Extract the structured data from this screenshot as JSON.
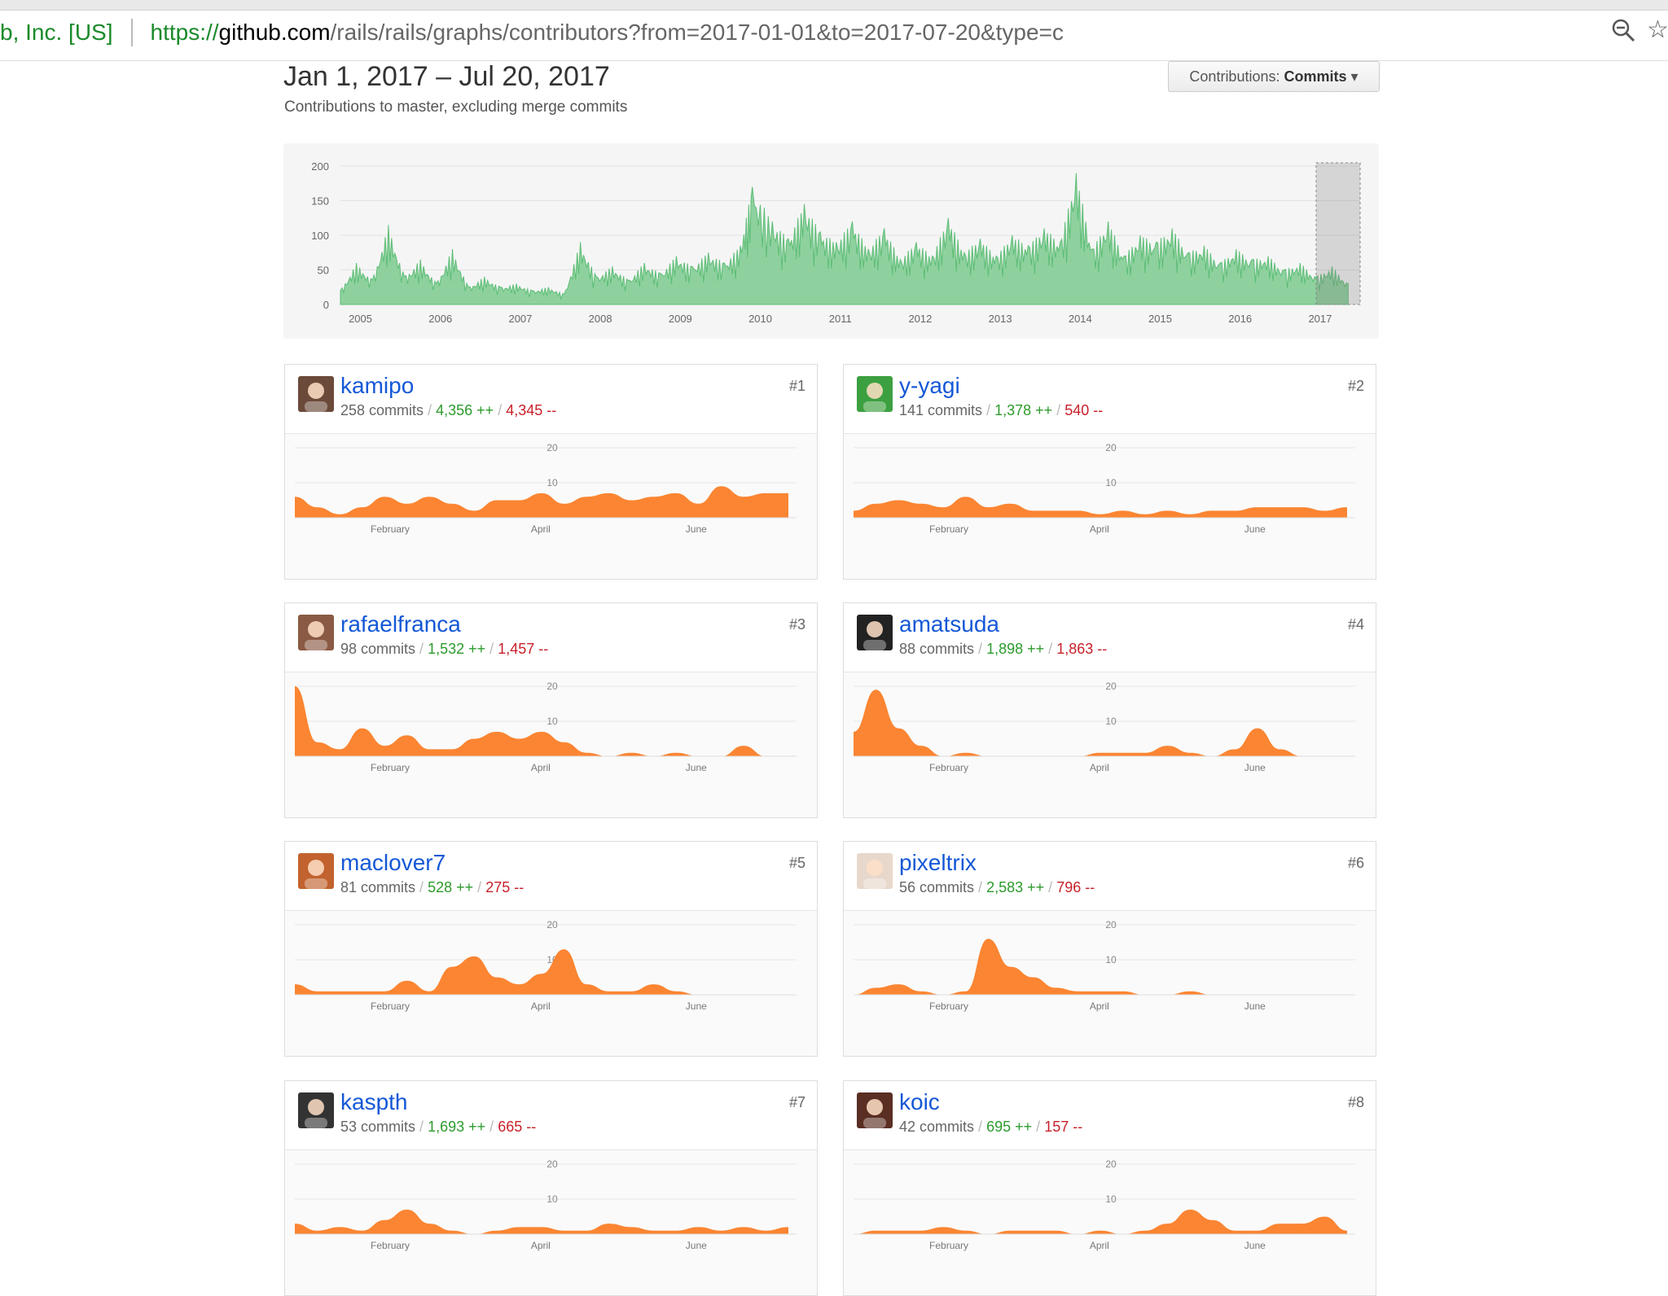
{
  "browser": {
    "cert_label": "b, Inc. [US]",
    "url_protocol": "https://",
    "url_domain": "github.com",
    "url_path": "/rails/rails/graphs/contributors?from=2017-01-01&to=2017-07-20&type=c"
  },
  "header": {
    "range_title": "Jan 1, 2017 – Jul 20, 2017",
    "subtitle": "Contributions to master, excluding merge commits",
    "contributions_label": "Contributions:",
    "contributions_value": "Commits"
  },
  "colors": {
    "overview_fill": "#8ed19e",
    "overview_stroke": "#5cbd75",
    "contributor_fill": "#fb8532",
    "link": "#1558d6",
    "additions": "#2c9b2c",
    "deletions": "#c8202a"
  },
  "chart_data": [
    {
      "type": "area",
      "ylim": [
        0,
        200
      ],
      "yticks": [
        "0",
        "50",
        "100",
        "150",
        "200"
      ],
      "xticks": [
        "2005",
        "2006",
        "2007",
        "2008",
        "2009",
        "2010",
        "2011",
        "2012",
        "2013",
        "2014",
        "2015",
        "2016",
        "2017"
      ],
      "x": [
        2004.8,
        2005.0,
        2005.2,
        2005.4,
        2005.6,
        2005.8,
        2006.0,
        2006.2,
        2006.4,
        2006.6,
        2006.8,
        2007.0,
        2007.2,
        2007.4,
        2007.6,
        2007.8,
        2008.0,
        2008.2,
        2008.4,
        2008.6,
        2008.8,
        2009.0,
        2009.2,
        2009.4,
        2009.6,
        2009.8,
        2009.95,
        2010.2,
        2010.4,
        2010.6,
        2010.8,
        2011.0,
        2011.2,
        2011.4,
        2011.6,
        2011.8,
        2012.0,
        2012.2,
        2012.4,
        2012.6,
        2012.8,
        2013.0,
        2013.2,
        2013.4,
        2013.6,
        2013.8,
        2014.0,
        2014.2,
        2014.4,
        2014.6,
        2014.8,
        2015.0,
        2015.2,
        2015.4,
        2015.6,
        2015.8,
        2016.0,
        2016.2,
        2016.4,
        2016.6,
        2016.8,
        2017.0,
        2017.2,
        2017.4
      ],
      "values": [
        20,
        60,
        35,
        115,
        40,
        65,
        30,
        80,
        25,
        40,
        25,
        30,
        20,
        25,
        15,
        90,
        40,
        55,
        35,
        60,
        45,
        70,
        55,
        75,
        60,
        85,
        170,
        120,
        95,
        145,
        105,
        90,
        120,
        80,
        110,
        65,
        90,
        70,
        125,
        75,
        95,
        70,
        100,
        85,
        110,
        90,
        190,
        80,
        120,
        70,
        100,
        90,
        110,
        75,
        85,
        60,
        80,
        65,
        70,
        50,
        60,
        40,
        55,
        30
      ],
      "selection": [
        "2017-01-01",
        "2017-07-20"
      ]
    },
    {
      "type": "area",
      "ylim": [
        0,
        20
      ],
      "yticks": [
        "10",
        "20"
      ],
      "xticks": [
        "February",
        "April",
        "June"
      ],
      "series": [
        {
          "name": "kamipo",
          "values": [
            6,
            3,
            1,
            3,
            6,
            4,
            6,
            4,
            2,
            5,
            5,
            7,
            4,
            6,
            7,
            5,
            6,
            7,
            4,
            9,
            6,
            7,
            7
          ]
        },
        {
          "name": "y-yagi",
          "values": [
            2,
            4,
            5,
            4,
            3,
            6,
            3,
            4,
            2,
            2,
            2,
            1,
            2,
            1,
            2,
            1,
            2,
            2,
            3,
            3,
            3,
            2,
            3
          ]
        },
        {
          "name": "rafaelfranca",
          "values": [
            20,
            4,
            2,
            8,
            3,
            6,
            2,
            2,
            5,
            7,
            5,
            7,
            4,
            1,
            0,
            1,
            0,
            1,
            0,
            0,
            3,
            0,
            0
          ]
        },
        {
          "name": "amatsuda",
          "values": [
            7,
            19,
            8,
            3,
            0,
            1,
            0,
            0,
            0,
            0,
            0,
            1,
            1,
            1,
            3,
            1,
            0,
            2,
            8,
            2,
            0,
            0,
            0
          ]
        },
        {
          "name": "maclover7",
          "values": [
            3,
            1,
            1,
            1,
            1,
            4,
            1,
            8,
            11,
            5,
            3,
            6,
            13,
            3,
            1,
            1,
            3,
            1,
            0,
            0,
            0,
            0,
            0
          ]
        },
        {
          "name": "pixeltrix",
          "values": [
            0,
            2,
            3,
            1,
            0,
            1,
            16,
            8,
            5,
            2,
            1,
            1,
            1,
            0,
            0,
            1,
            0,
            0,
            0,
            0,
            0,
            0,
            0
          ]
        },
        {
          "name": "kaspth",
          "values": [
            3,
            1,
            2,
            1,
            4,
            7,
            3,
            1,
            0,
            1,
            2,
            2,
            1,
            1,
            3,
            2,
            1,
            1,
            2,
            1,
            2,
            1,
            2
          ]
        },
        {
          "name": "koic",
          "values": [
            0,
            1,
            1,
            1,
            2,
            1,
            0,
            1,
            1,
            1,
            0,
            1,
            0,
            1,
            3,
            7,
            4,
            1,
            1,
            3,
            3,
            5,
            1
          ]
        }
      ]
    }
  ],
  "contributors": [
    {
      "username": "kamipo",
      "rank": "#1",
      "commits_text": "258 commits",
      "additions_text": "4,356 ++",
      "deletions_text": "4,345 --"
    },
    {
      "username": "y-yagi",
      "rank": "#2",
      "commits_text": "141 commits",
      "additions_text": "1,378 ++",
      "deletions_text": "540 --"
    },
    {
      "username": "rafaelfranca",
      "rank": "#3",
      "commits_text": "98 commits",
      "additions_text": "1,532 ++",
      "deletions_text": "1,457 --"
    },
    {
      "username": "amatsuda",
      "rank": "#4",
      "commits_text": "88 commits",
      "additions_text": "1,898 ++",
      "deletions_text": "1,863 --"
    },
    {
      "username": "maclover7",
      "rank": "#5",
      "commits_text": "81 commits",
      "additions_text": "528 ++",
      "deletions_text": "275 --"
    },
    {
      "username": "pixeltrix",
      "rank": "#6",
      "commits_text": "56 commits",
      "additions_text": "2,583 ++",
      "deletions_text": "796 --"
    },
    {
      "username": "kaspth",
      "rank": "#7",
      "commits_text": "53 commits",
      "additions_text": "1,693 ++",
      "deletions_text": "665 --"
    },
    {
      "username": "koic",
      "rank": "#8",
      "commits_text": "42 commits",
      "additions_text": "695 ++",
      "deletions_text": "157 --"
    }
  ],
  "sep": "/"
}
